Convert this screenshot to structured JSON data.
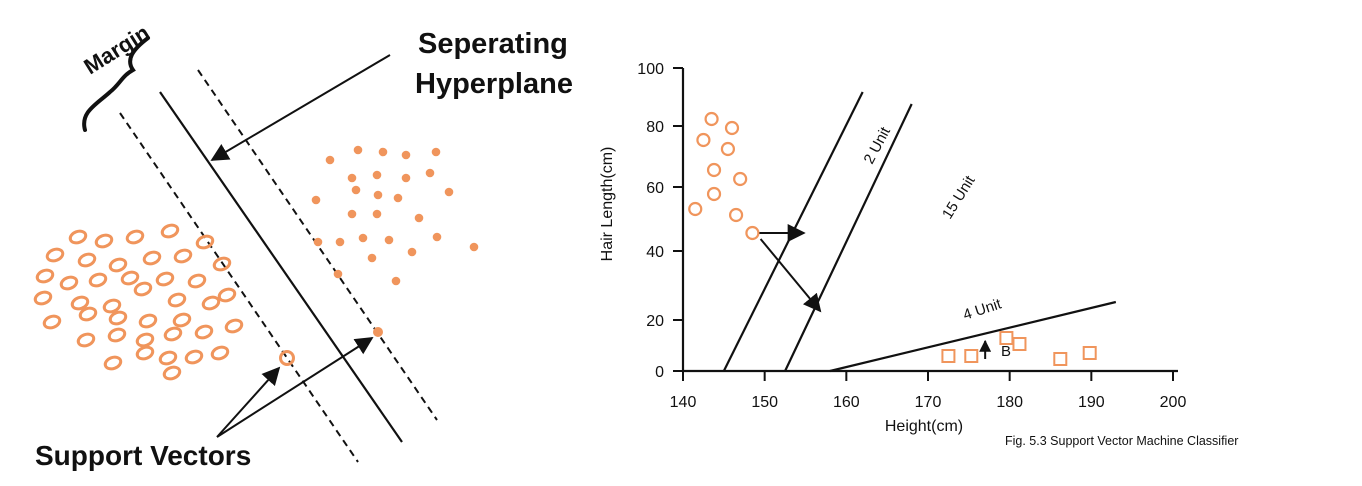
{
  "left_diagram": {
    "margin_label": "Margin",
    "hyperplane_label_line1": "Seperating",
    "hyperplane_label_line2": "Hyperplane",
    "support_vectors_label": "Support Vectors",
    "point_color": "#F0955C"
  },
  "right_chart": {
    "caption": "Fig. 5.3 Support Vector Machine  Classifier",
    "xlabel": "Height(cm)",
    "ylabel": "Hair Length(cm)",
    "line_labels": [
      "2 Unit",
      "15 Unit",
      "4 Unit"
    ],
    "point_label_b": "B",
    "marker_color": "#F0955C"
  },
  "chart_data": {
    "type": "scatter",
    "title": "",
    "xlabel": "Height(cm)",
    "ylabel": "Hair Length(cm)",
    "xlim": [
      140,
      200
    ],
    "ylim": [
      0,
      100
    ],
    "x_ticks": [
      140,
      150,
      160,
      170,
      180,
      190,
      200
    ],
    "y_ticks": [
      0,
      20,
      40,
      60,
      80,
      100
    ],
    "y_tick_labels": [
      "0",
      "20",
      "40",
      "60",
      "80",
      "100"
    ],
    "grid": false,
    "series": [
      {
        "marker": "circle",
        "points": [
          [
            143.5,
            84
          ],
          [
            142.5,
            77
          ],
          [
            146,
            81
          ],
          [
            145.5,
            74
          ],
          [
            143.8,
            67
          ],
          [
            147,
            64
          ],
          [
            143.8,
            59
          ],
          [
            141.5,
            54
          ],
          [
            146.5,
            52
          ],
          [
            148.5,
            46
          ]
        ]
      },
      {
        "marker": "square",
        "points": [
          [
            172.5,
            5
          ],
          [
            175.3,
            5
          ],
          [
            179.6,
            11
          ],
          [
            181.2,
            9
          ],
          [
            186.2,
            4
          ],
          [
            189.8,
            6
          ]
        ]
      }
    ],
    "lines": [
      {
        "label": "2 Unit",
        "from": [
          145,
          0
        ],
        "to": [
          162,
          93
        ]
      },
      {
        "label": "15 Unit",
        "from": [
          152.5,
          0
        ],
        "to": [
          168,
          89
        ]
      },
      {
        "label": "4 Unit",
        "from": [
          158,
          0
        ],
        "to": [
          193,
          23
        ]
      }
    ],
    "arrows": [
      {
        "from": [
          148.5,
          46
        ],
        "to": [
          154.8,
          46
        ]
      },
      {
        "from": [
          149.5,
          44
        ],
        "to": [
          156.8,
          20
        ]
      },
      {
        "from": [
          177,
          4
        ],
        "to": [
          177,
          10
        ]
      }
    ]
  }
}
